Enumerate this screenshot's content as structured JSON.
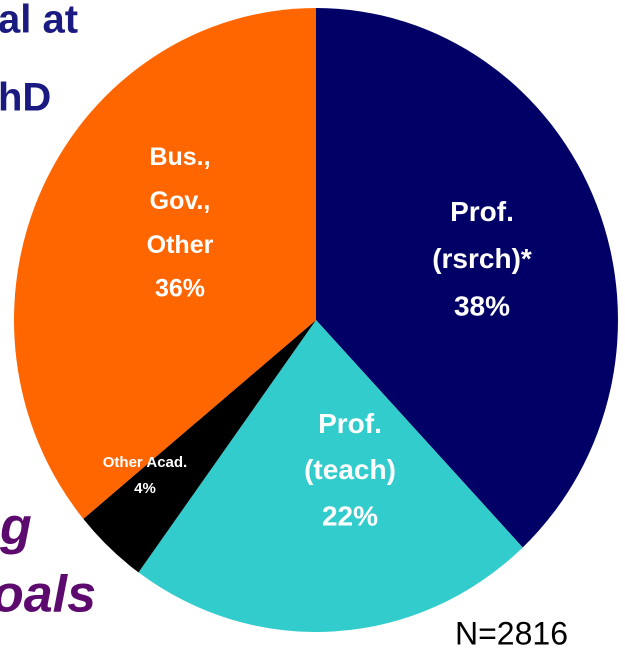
{
  "chart_data": {
    "type": "pie",
    "categories": [
      "Prof.\n(rsrch)*",
      "Prof.\n(teach)",
      "Other Acad.",
      "Bus.,\nGov.,\nOther"
    ],
    "values": [
      38,
      22,
      4,
      36
    ],
    "value_labels": [
      "38%",
      "22%",
      "4%",
      "36%"
    ],
    "colors": [
      "#000066",
      "#33cccc",
      "#000000",
      "#ff6600"
    ],
    "annotations": [
      "N=2816"
    ]
  },
  "background_text": [
    "al at",
    "hD",
    "g",
    "oals"
  ]
}
